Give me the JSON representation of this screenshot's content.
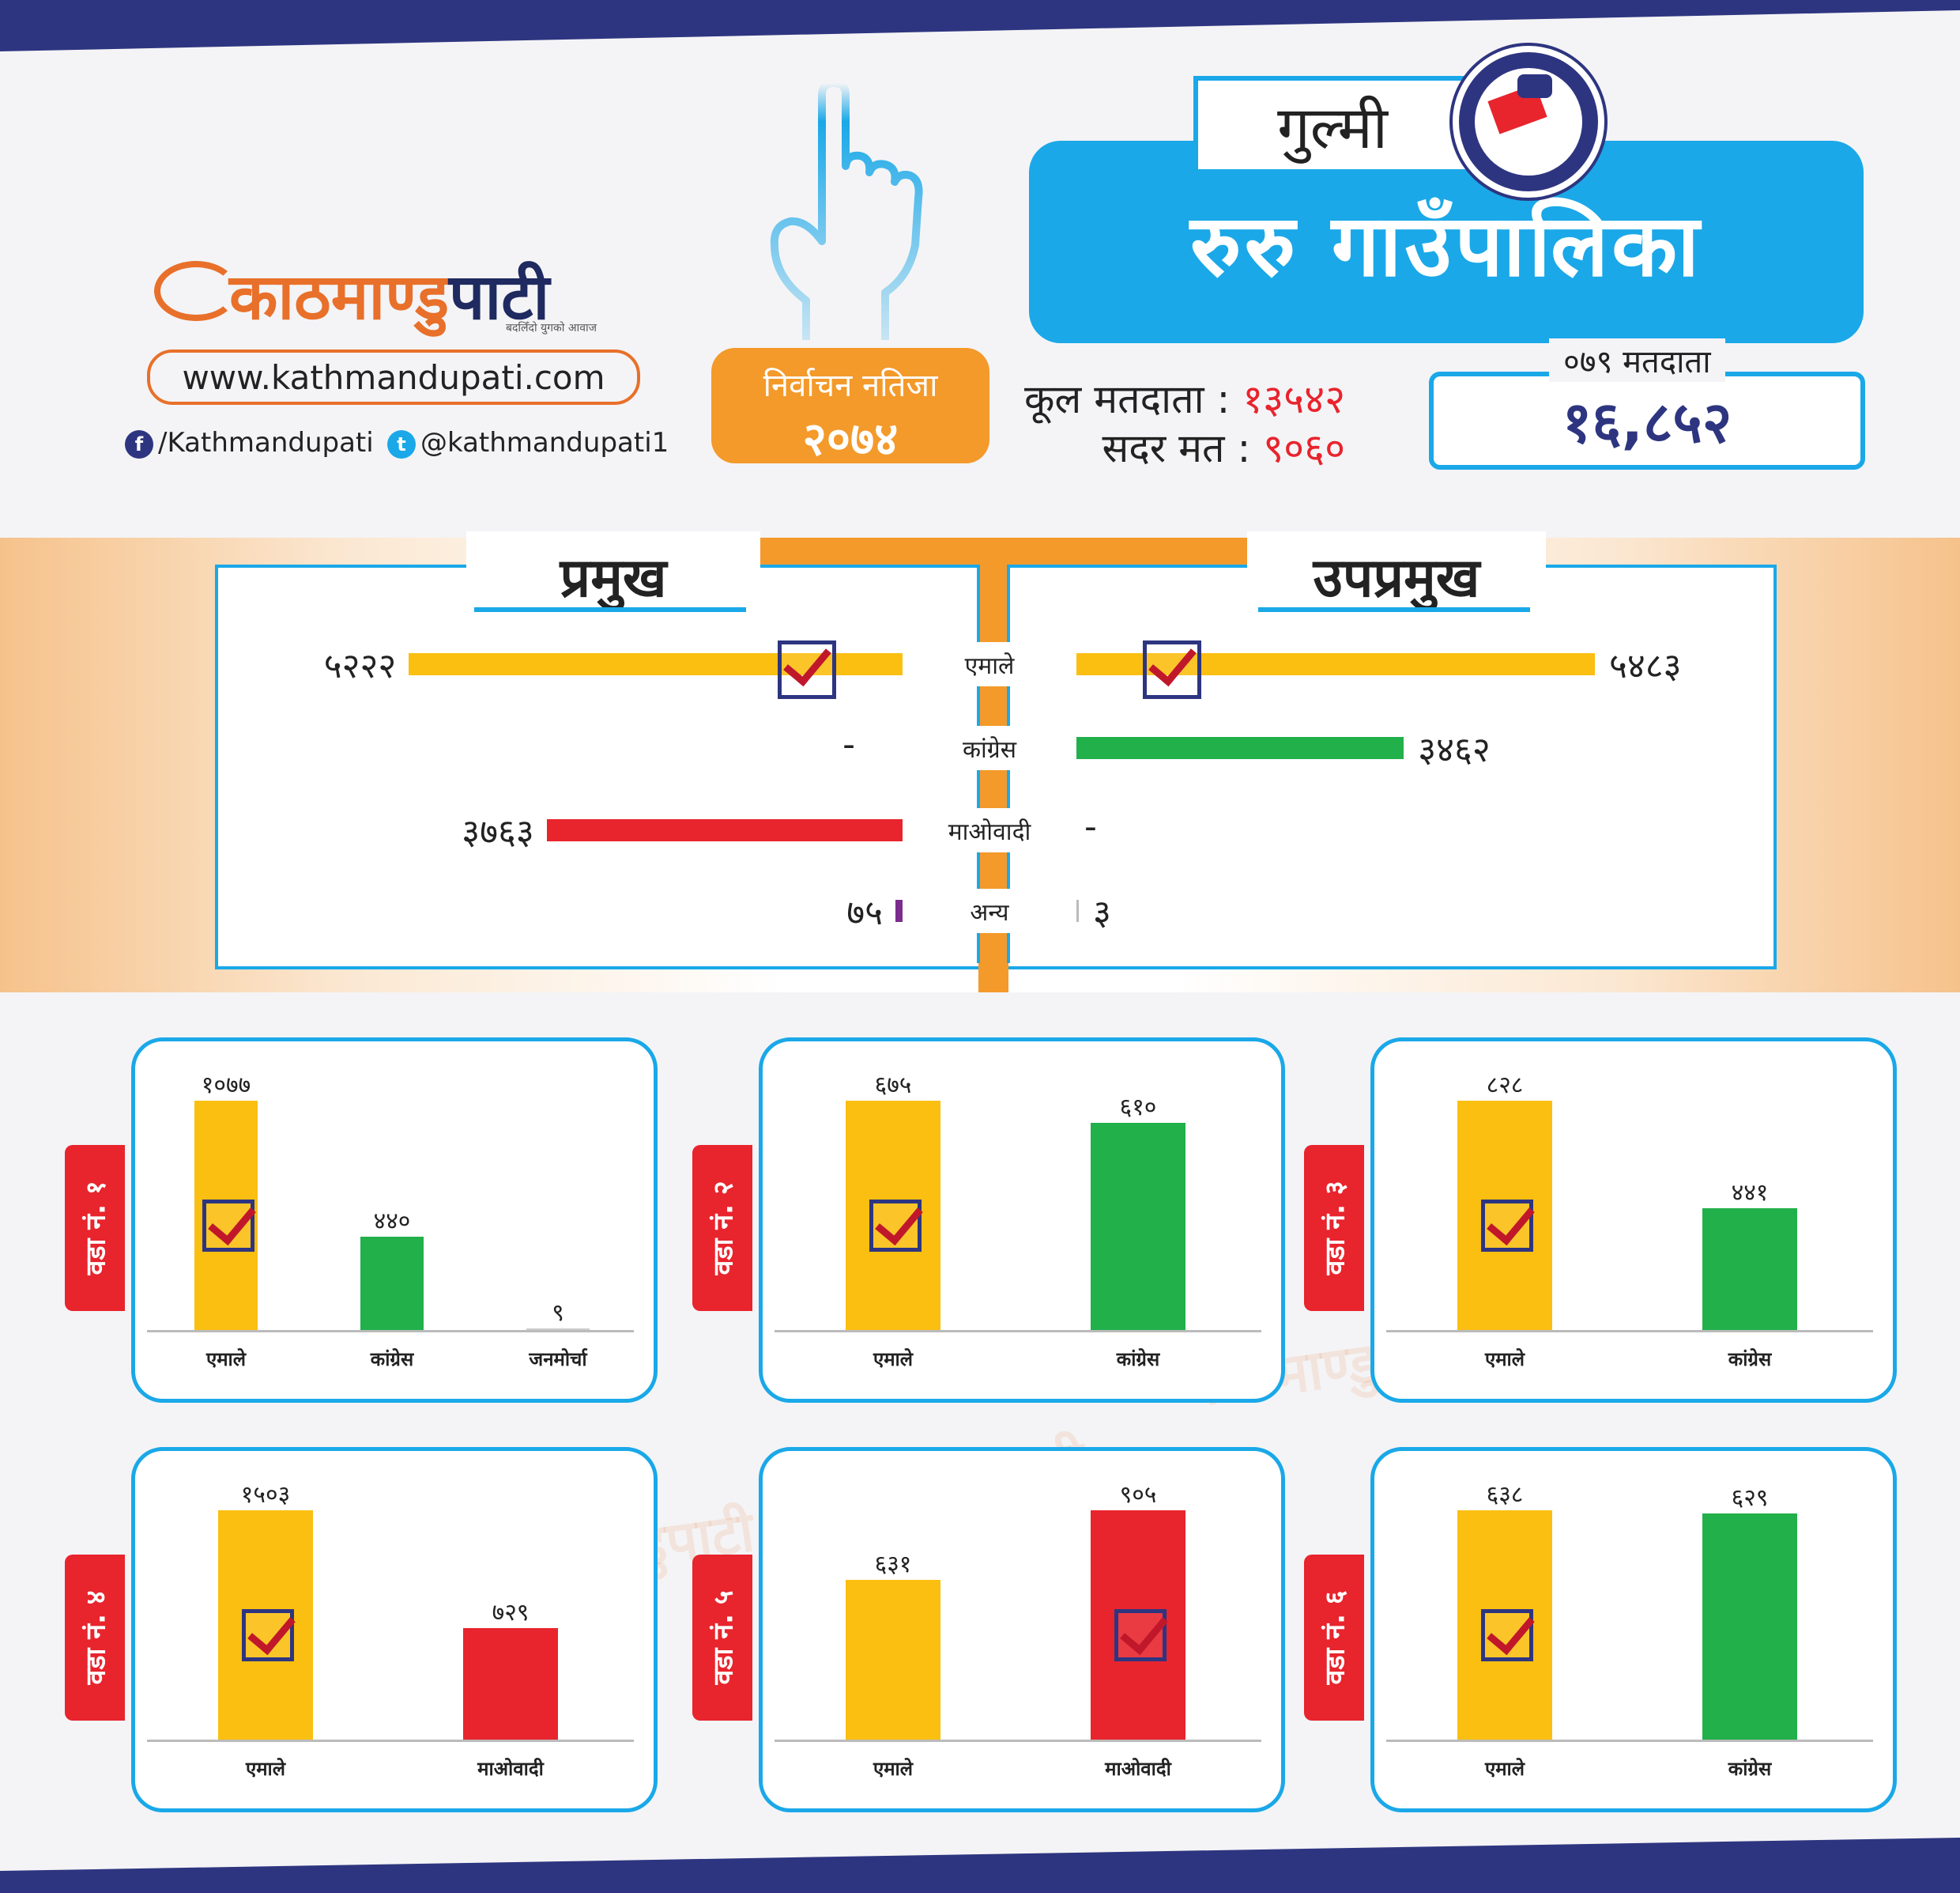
{
  "colors": {
    "uml": "#fbbf12",
    "congress": "#22b04b",
    "maoist": "#e8242d",
    "other": "#7b2d8e",
    "accent": "#1aa8e8",
    "orange": "#f39a2b",
    "navy": "#2e3580"
  },
  "brand": {
    "name_part1": "काठमाण्डु",
    "name_part2": "पाटी",
    "tagline": "बदलिँदो युगको आवाज",
    "url": "www.kathmandupati.com",
    "facebook": "/Kathmandupati",
    "twitter": "@kathmandupati1"
  },
  "election": {
    "label": "निर्वाचन नतिजा",
    "year": "२०७४"
  },
  "header": {
    "district": "गुल्मी",
    "municipality": "रुरु गाउँपालिका"
  },
  "stats": {
    "total_voters_label": "कूल मतदाता",
    "total_voters": "१३५४२",
    "valid_votes_label": "सदर मत",
    "valid_votes": "९०६०",
    "voters_2079_label": "०७९ मतदाता",
    "voters_2079": "१६,८५२"
  },
  "watermark": "काठमाण्डुपाटी",
  "chart_data": [
    {
      "type": "bar",
      "title": "प्रमुख",
      "categories": [
        "एमाले",
        "कांग्रेस",
        "माओवादी",
        "अन्य"
      ],
      "values": [
        5222,
        null,
        3763,
        75
      ],
      "labels": [
        "५२२२",
        "-",
        "३७६३",
        "७५"
      ],
      "winner": "एमाले"
    },
    {
      "type": "bar",
      "title": "उपप्रमुख",
      "categories": [
        "एमाले",
        "कांग्रेस",
        "माओवादी",
        "अन्य"
      ],
      "values": [
        5483,
        3462,
        null,
        3
      ],
      "labels": [
        "५४८३",
        "३४६२",
        "-",
        "३"
      ],
      "winner": "एमाले"
    },
    {
      "type": "bar",
      "title": "वडा नं. १",
      "categories": [
        "एमाले",
        "कांग्रेस",
        "जनमोर्चा"
      ],
      "values": [
        1077,
        440,
        9
      ],
      "labels": [
        "१०७७",
        "४४०",
        "९"
      ],
      "winner": "एमाले"
    },
    {
      "type": "bar",
      "title": "वडा नं. २",
      "categories": [
        "एमाले",
        "कांग्रेस"
      ],
      "values": [
        675,
        610
      ],
      "labels": [
        "६७५",
        "६१०"
      ],
      "winner": "एमाले"
    },
    {
      "type": "bar",
      "title": "वडा नं. ३",
      "categories": [
        "एमाले",
        "कांग्रेस"
      ],
      "values": [
        828,
        441
      ],
      "labels": [
        "८२८",
        "४४१"
      ],
      "winner": "एमाले"
    },
    {
      "type": "bar",
      "title": "वडा नं. ४",
      "categories": [
        "एमाले",
        "माओवादी"
      ],
      "values": [
        1503,
        729
      ],
      "labels": [
        "१५०३",
        "७२९"
      ],
      "winner": "एमाले"
    },
    {
      "type": "bar",
      "title": "वडा नं. ५",
      "categories": [
        "एमाले",
        "माओवादी"
      ],
      "values": [
        631,
        905
      ],
      "labels": [
        "६३१",
        "९०५"
      ],
      "winner": "माओवादी"
    },
    {
      "type": "bar",
      "title": "वडा नं. ६",
      "categories": [
        "एमाले",
        "कांग्रेस"
      ],
      "values": [
        638,
        629
      ],
      "labels": [
        "६३८",
        "६२९"
      ],
      "winner": "एमाले"
    }
  ]
}
